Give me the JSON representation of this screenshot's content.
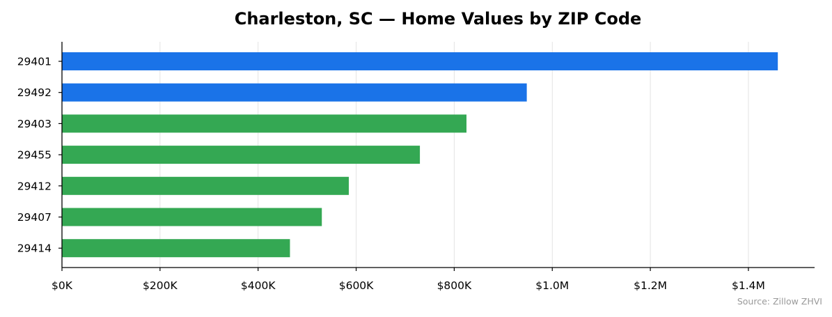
{
  "chart_data": {
    "type": "bar",
    "orientation": "horizontal",
    "title": "Charleston, SC — Home Values by ZIP Code",
    "xlabel": "",
    "ylabel": "",
    "categories": [
      "29401",
      "29492",
      "29403",
      "29455",
      "29412",
      "29407",
      "29414"
    ],
    "values": [
      1460000,
      948000,
      825000,
      730000,
      585000,
      530000,
      465000
    ],
    "bar_colors": [
      "#1a73e8",
      "#1a73e8",
      "#34a853",
      "#34a853",
      "#34a853",
      "#34a853",
      "#34a853"
    ],
    "xlim": [
      0,
      1535000
    ],
    "x_ticks": [
      0,
      200000,
      400000,
      600000,
      800000,
      1000000,
      1200000,
      1400000
    ],
    "x_tick_labels": [
      "$0K",
      "$200K",
      "$400K",
      "$600K",
      "$800K",
      "$1.0M",
      "$1.2M",
      "$1.4M"
    ],
    "grid": "vertical",
    "legend": "none",
    "source": "Source: Zillow ZHVI"
  }
}
